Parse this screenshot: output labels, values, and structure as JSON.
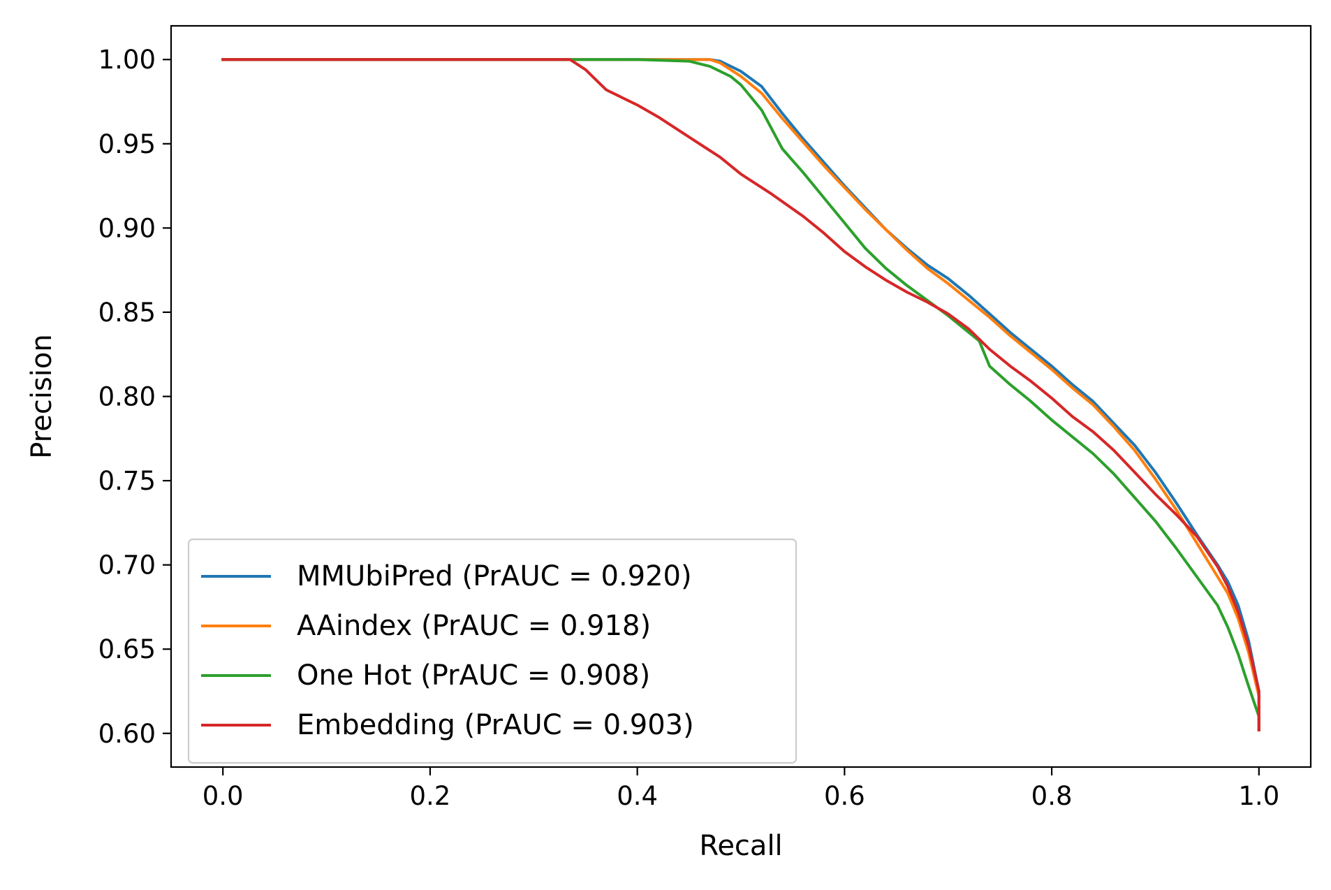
{
  "chart_data": {
    "type": "line",
    "title": "",
    "xlabel": "Recall",
    "ylabel": "Precision",
    "xlim": [
      -0.05,
      1.05
    ],
    "ylim": [
      0.58,
      1.02
    ],
    "xticks": [
      0.0,
      0.2,
      0.4,
      0.6,
      0.8,
      1.0
    ],
    "xtick_labels": [
      "0.0",
      "0.2",
      "0.4",
      "0.6",
      "0.8",
      "1.0"
    ],
    "yticks": [
      0.6,
      0.65,
      0.7,
      0.75,
      0.8,
      0.85,
      0.9,
      0.95,
      1.0
    ],
    "ytick_labels": [
      "0.60",
      "0.65",
      "0.70",
      "0.75",
      "0.80",
      "0.85",
      "0.90",
      "0.95",
      "1.00"
    ],
    "grid": false,
    "legend_position": "lower-left",
    "series": [
      {
        "name": "MMUbiPred (PrAUC = 0.920)",
        "color": "#1f77b4",
        "x": [
          0.0,
          0.3,
          0.4,
          0.46,
          0.47,
          0.48,
          0.5,
          0.52,
          0.54,
          0.56,
          0.58,
          0.6,
          0.62,
          0.64,
          0.66,
          0.68,
          0.7,
          0.72,
          0.74,
          0.76,
          0.78,
          0.8,
          0.82,
          0.84,
          0.86,
          0.88,
          0.9,
          0.92,
          0.94,
          0.96,
          0.97,
          0.98,
          0.99,
          1.0,
          1.0
        ],
        "y": [
          1.0,
          1.0,
          1.0,
          1.0,
          1.0,
          0.999,
          0.993,
          0.984,
          0.968,
          0.953,
          0.939,
          0.925,
          0.912,
          0.899,
          0.888,
          0.878,
          0.87,
          0.86,
          0.849,
          0.838,
          0.828,
          0.818,
          0.807,
          0.797,
          0.784,
          0.771,
          0.755,
          0.737,
          0.718,
          0.7,
          0.69,
          0.676,
          0.655,
          0.625,
          0.602
        ]
      },
      {
        "name": "AAindex (PrAUC = 0.918)",
        "color": "#ff7f0e",
        "x": [
          0.0,
          0.3,
          0.4,
          0.46,
          0.47,
          0.48,
          0.5,
          0.52,
          0.54,
          0.56,
          0.58,
          0.6,
          0.62,
          0.64,
          0.66,
          0.68,
          0.7,
          0.72,
          0.74,
          0.76,
          0.78,
          0.8,
          0.82,
          0.84,
          0.86,
          0.88,
          0.9,
          0.92,
          0.94,
          0.96,
          0.97,
          0.98,
          0.99,
          1.0,
          1.0
        ],
        "y": [
          1.0,
          1.0,
          1.0,
          1.0,
          1.0,
          0.998,
          0.99,
          0.98,
          0.965,
          0.951,
          0.937,
          0.924,
          0.911,
          0.899,
          0.887,
          0.876,
          0.867,
          0.857,
          0.847,
          0.836,
          0.826,
          0.816,
          0.805,
          0.795,
          0.782,
          0.768,
          0.751,
          0.733,
          0.713,
          0.693,
          0.683,
          0.668,
          0.648,
          0.622,
          0.602
        ]
      },
      {
        "name": "One Hot (PrAUC = 0.908)",
        "color": "#2ca02c",
        "x": [
          0.0,
          0.3,
          0.34,
          0.4,
          0.45,
          0.47,
          0.49,
          0.5,
          0.52,
          0.54,
          0.56,
          0.58,
          0.6,
          0.62,
          0.64,
          0.66,
          0.68,
          0.7,
          0.72,
          0.73,
          0.74,
          0.76,
          0.78,
          0.8,
          0.82,
          0.84,
          0.86,
          0.88,
          0.9,
          0.92,
          0.94,
          0.96,
          0.97,
          0.98,
          0.99,
          1.0,
          1.0
        ],
        "y": [
          1.0,
          1.0,
          1.0,
          1.0,
          0.999,
          0.996,
          0.99,
          0.985,
          0.97,
          0.947,
          0.933,
          0.918,
          0.903,
          0.888,
          0.876,
          0.866,
          0.857,
          0.848,
          0.838,
          0.833,
          0.818,
          0.807,
          0.797,
          0.786,
          0.776,
          0.766,
          0.754,
          0.74,
          0.726,
          0.71,
          0.693,
          0.676,
          0.663,
          0.647,
          0.628,
          0.61,
          0.602
        ]
      },
      {
        "name": "Embedding (PrAUC = 0.903)",
        "color": "#d62728",
        "x": [
          0.0,
          0.2,
          0.335,
          0.35,
          0.37,
          0.4,
          0.42,
          0.45,
          0.48,
          0.5,
          0.53,
          0.56,
          0.58,
          0.6,
          0.62,
          0.64,
          0.66,
          0.68,
          0.7,
          0.72,
          0.74,
          0.76,
          0.78,
          0.8,
          0.82,
          0.84,
          0.86,
          0.88,
          0.9,
          0.92,
          0.94,
          0.96,
          0.97,
          0.98,
          0.99,
          1.0,
          1.0
        ],
        "y": [
          1.0,
          1.0,
          1.0,
          0.994,
          0.982,
          0.973,
          0.966,
          0.954,
          0.942,
          0.932,
          0.92,
          0.907,
          0.897,
          0.886,
          0.877,
          0.869,
          0.862,
          0.856,
          0.849,
          0.84,
          0.828,
          0.818,
          0.809,
          0.799,
          0.788,
          0.779,
          0.768,
          0.755,
          0.742,
          0.73,
          0.717,
          0.699,
          0.687,
          0.672,
          0.652,
          0.625,
          0.602
        ]
      }
    ]
  }
}
